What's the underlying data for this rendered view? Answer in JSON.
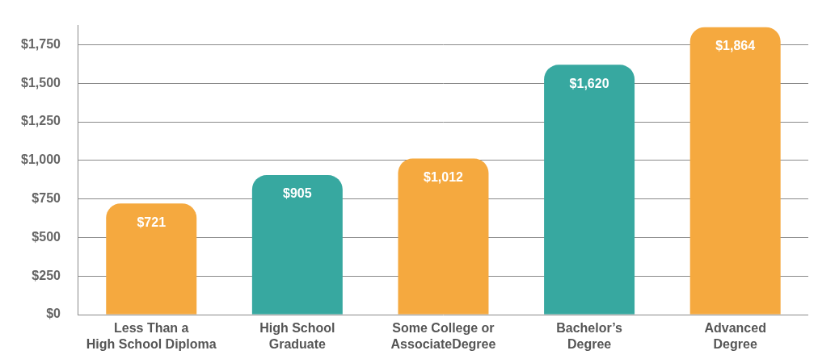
{
  "chart_data": {
    "type": "bar",
    "categories": [
      [
        "Less Than a",
        "High School Diploma"
      ],
      [
        "High School",
        "Graduate"
      ],
      [
        "Some College or",
        "AssociateDegree"
      ],
      [
        "Bachelor’s",
        "Degree"
      ],
      [
        "Advanced",
        "Degree"
      ]
    ],
    "values": [
      721,
      905,
      1012,
      1620,
      1864
    ],
    "value_labels": [
      "$721",
      "$905",
      "$1,012",
      "$1,620",
      "$1,864"
    ],
    "colors": [
      "#f5a93f",
      "#37a8a0",
      "#f5a93f",
      "#37a8a0",
      "#f5a93f"
    ],
    "ylim": [
      0,
      1875
    ],
    "yticks": [
      {
        "value": 0,
        "label": "$0"
      },
      {
        "value": 250,
        "label": "$250"
      },
      {
        "value": 500,
        "label": "$500"
      },
      {
        "value": 750,
        "label": "$750"
      },
      {
        "value": 1000,
        "label": "$1,000"
      },
      {
        "value": 1250,
        "label": "$1,250"
      },
      {
        "value": 1500,
        "label": "$1,500"
      },
      {
        "value": 1750,
        "label": "$1,750"
      }
    ],
    "grid": true,
    "data_labels": true
  }
}
